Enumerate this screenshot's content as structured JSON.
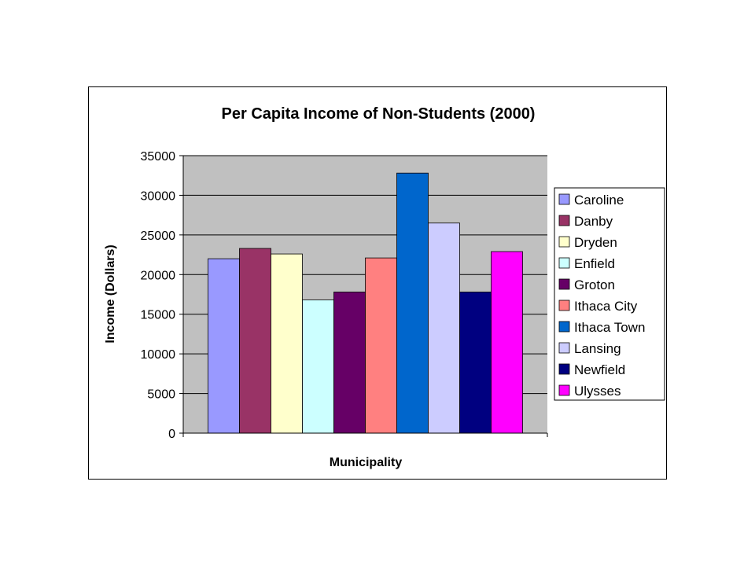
{
  "chart_data": {
    "type": "bar",
    "title": "Per Capita Income of Non-Students (2000)",
    "xlabel": "Municipality",
    "ylabel": "Income (Dollars)",
    "ylim": [
      0,
      35000
    ],
    "yticks": [
      "0",
      "5000",
      "10000",
      "15000",
      "20000",
      "25000",
      "30000",
      "35000"
    ],
    "grid": true,
    "plot_background": "#c0c0c0",
    "legend_position": "right",
    "series": [
      {
        "name": "Caroline",
        "value": 22000,
        "color": "#9999ff"
      },
      {
        "name": "Danby",
        "value": 23300,
        "color": "#993366"
      },
      {
        "name": "Dryden",
        "value": 22600,
        "color": "#ffffcc"
      },
      {
        "name": "Enfield",
        "value": 16800,
        "color": "#ccffff"
      },
      {
        "name": "Groton",
        "value": 17800,
        "color": "#660066"
      },
      {
        "name": "Ithaca City",
        "value": 22100,
        "color": "#ff8080"
      },
      {
        "name": "Ithaca Town",
        "value": 32800,
        "color": "#0066cc"
      },
      {
        "name": "Lansing",
        "value": 26500,
        "color": "#ccccff"
      },
      {
        "name": "Newfield",
        "value": 17800,
        "color": "#000080"
      },
      {
        "name": "Ulysses",
        "value": 22900,
        "color": "#ff00ff"
      }
    ]
  }
}
